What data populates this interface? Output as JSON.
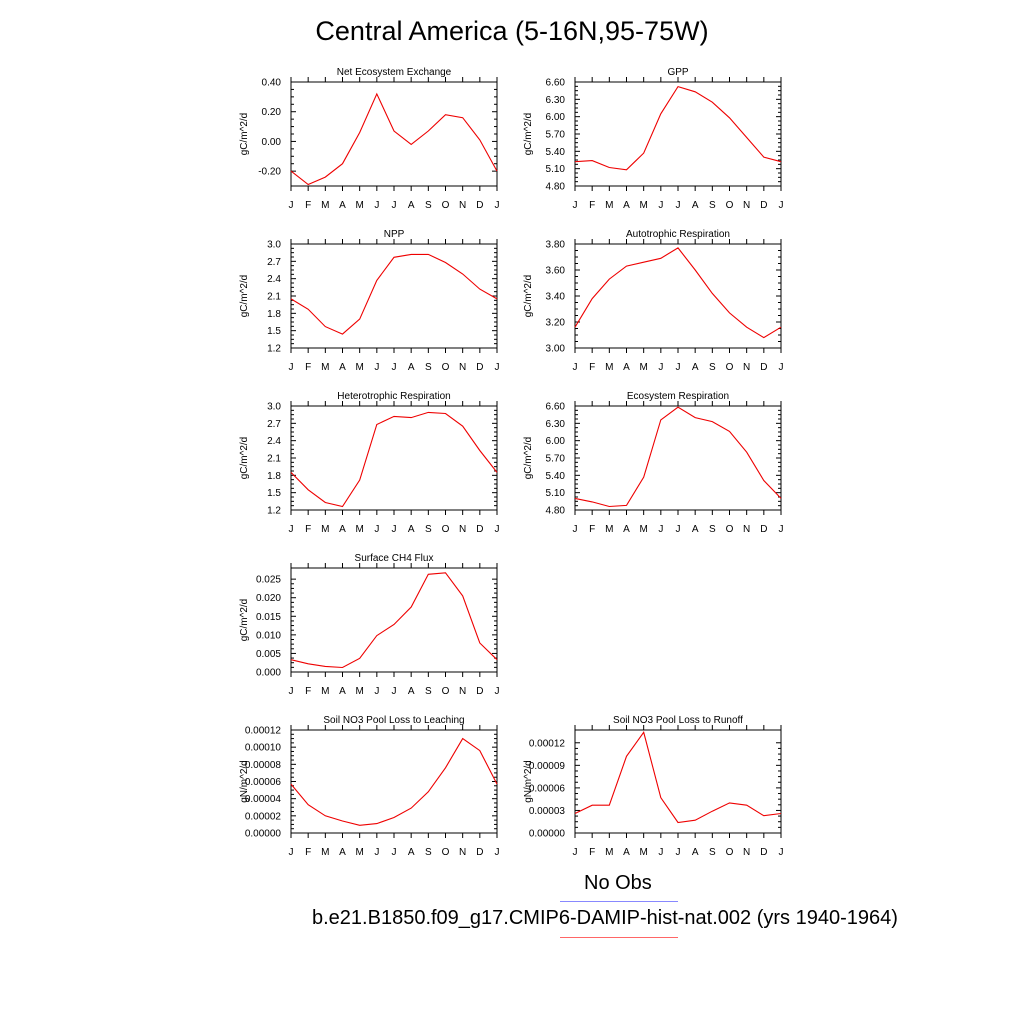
{
  "page_title": "Central America (5-16N,95-75W)",
  "months": [
    "J",
    "F",
    "M",
    "A",
    "M",
    "J",
    "J",
    "A",
    "S",
    "O",
    "N",
    "D",
    "J"
  ],
  "line_color": "#ee0000",
  "chart_data": [
    {
      "type": "line",
      "title": "Net Ecosystem Exchange",
      "ylabel": "gC/m^2/d",
      "ylim": [
        -0.3,
        0.4
      ],
      "yticks": [
        -0.2,
        0.0,
        0.2,
        0.4
      ],
      "ytick_labels": [
        "-0.20",
        "0.00",
        "0.20",
        "0.40"
      ],
      "values": [
        -0.2,
        -0.29,
        -0.24,
        -0.15,
        0.06,
        0.32,
        0.07,
        -0.02,
        0.07,
        0.18,
        0.16,
        0.01,
        -0.2
      ]
    },
    {
      "type": "line",
      "title": "GPP",
      "ylabel": "gC/m^2/d",
      "ylim": [
        4.8,
        6.6
      ],
      "yticks": [
        4.8,
        5.1,
        5.4,
        5.7,
        6.0,
        6.3,
        6.6
      ],
      "ytick_labels": [
        "4.80",
        "5.10",
        "5.40",
        "5.70",
        "6.00",
        "6.30",
        "6.60"
      ],
      "values": [
        5.22,
        5.24,
        5.12,
        5.08,
        5.37,
        6.05,
        6.52,
        6.43,
        6.25,
        5.98,
        5.64,
        5.3,
        5.22
      ]
    },
    {
      "type": "line",
      "title": "NPP",
      "ylabel": "gC/m^2/d",
      "ylim": [
        1.2,
        3.0
      ],
      "yticks": [
        1.2,
        1.5,
        1.8,
        2.1,
        2.4,
        2.7,
        3.0
      ],
      "ytick_labels": [
        "1.2",
        "1.5",
        "1.8",
        "2.1",
        "2.4",
        "2.7",
        "3.0"
      ],
      "values": [
        2.05,
        1.87,
        1.57,
        1.44,
        1.7,
        2.37,
        2.77,
        2.82,
        2.82,
        2.68,
        2.48,
        2.22,
        2.05
      ]
    },
    {
      "type": "line",
      "title": "Autotrophic Respiration",
      "ylabel": "gC/m^2/d",
      "ylim": [
        3.0,
        3.8
      ],
      "yticks": [
        3.0,
        3.2,
        3.4,
        3.6,
        3.8
      ],
      "ytick_labels": [
        "3.00",
        "3.20",
        "3.40",
        "3.60",
        "3.80"
      ],
      "values": [
        3.16,
        3.38,
        3.53,
        3.63,
        3.66,
        3.69,
        3.77,
        3.6,
        3.42,
        3.27,
        3.16,
        3.08,
        3.16
      ]
    },
    {
      "type": "line",
      "title": "Heterotrophic Respiration",
      "ylabel": "gC/m^2/d",
      "ylim": [
        1.2,
        3.0
      ],
      "yticks": [
        1.2,
        1.5,
        1.8,
        2.1,
        2.4,
        2.7,
        3.0
      ],
      "ytick_labels": [
        "1.2",
        "1.5",
        "1.8",
        "2.1",
        "2.4",
        "2.7",
        "3.0"
      ],
      "values": [
        1.85,
        1.55,
        1.33,
        1.26,
        1.72,
        2.68,
        2.82,
        2.8,
        2.89,
        2.87,
        2.65,
        2.23,
        1.85
      ]
    },
    {
      "type": "line",
      "title": "Ecosystem Respiration",
      "ylabel": "gC/m^2/d",
      "ylim": [
        4.8,
        6.6
      ],
      "yticks": [
        4.8,
        5.1,
        5.4,
        5.7,
        6.0,
        6.3,
        6.6
      ],
      "ytick_labels": [
        "4.80",
        "5.10",
        "5.40",
        "5.70",
        "6.00",
        "6.30",
        "6.60"
      ],
      "values": [
        5.0,
        4.94,
        4.86,
        4.88,
        5.37,
        6.36,
        6.58,
        6.4,
        6.33,
        6.16,
        5.8,
        5.31,
        5.0
      ]
    },
    {
      "type": "line",
      "title": "Surface CH4 Flux",
      "ylabel": "gC/m^2/d",
      "ylim": [
        0.0,
        0.028
      ],
      "yticks": [
        0.0,
        0.005,
        0.01,
        0.015,
        0.02,
        0.025
      ],
      "ytick_labels": [
        "0.000",
        "0.005",
        "0.010",
        "0.015",
        "0.020",
        "0.025"
      ],
      "values": [
        0.0033,
        0.0022,
        0.0015,
        0.0012,
        0.0037,
        0.0098,
        0.0128,
        0.0175,
        0.0263,
        0.0267,
        0.0205,
        0.0078,
        0.0033
      ]
    },
    {
      "type": "line",
      "title": "Soil NO3 Pool Loss to Leaching",
      "ylabel": "gN/m^2/d",
      "ylim": [
        0.0,
        0.00012
      ],
      "yticks": [
        0,
        2e-05,
        4e-05,
        6e-05,
        8e-05,
        0.0001,
        0.00012
      ],
      "ytick_labels": [
        "0.00000",
        "0.00002",
        "0.00004",
        "0.00006",
        "0.00008",
        "0.00010",
        "0.00012"
      ],
      "values": [
        5.7e-05,
        3.3e-05,
        2e-05,
        1.4e-05,
        9e-06,
        1.1e-05,
        1.8e-05,
        2.9e-05,
        4.8e-05,
        7.6e-05,
        0.00011,
        9.6e-05,
        5.7e-05
      ]
    },
    {
      "type": "line",
      "title": "Soil NO3 Pool Loss to Runoff",
      "ylabel": "gN/m^2/d",
      "ylim": [
        0.0,
        0.000137
      ],
      "yticks": [
        0,
        3e-05,
        6e-05,
        9e-05,
        0.00012
      ],
      "ytick_labels": [
        "0.00000",
        "0.00003",
        "0.00006",
        "0.00009",
        "0.00012"
      ],
      "values": [
        2.6e-05,
        3.7e-05,
        3.7e-05,
        0.000102,
        0.000134,
        4.7e-05,
        1.4e-05,
        1.7e-05,
        2.9e-05,
        4e-05,
        3.7e-05,
        2.3e-05,
        2.6e-05
      ]
    }
  ],
  "legend": {
    "obs_label": "No Obs",
    "obs_color": "#8888ff",
    "model_label": "b.e21.B1850.f09_g17.CMIP6-DAMIP-hist-nat.002 (yrs 1940-1964)",
    "model_color": "#ff6666"
  }
}
